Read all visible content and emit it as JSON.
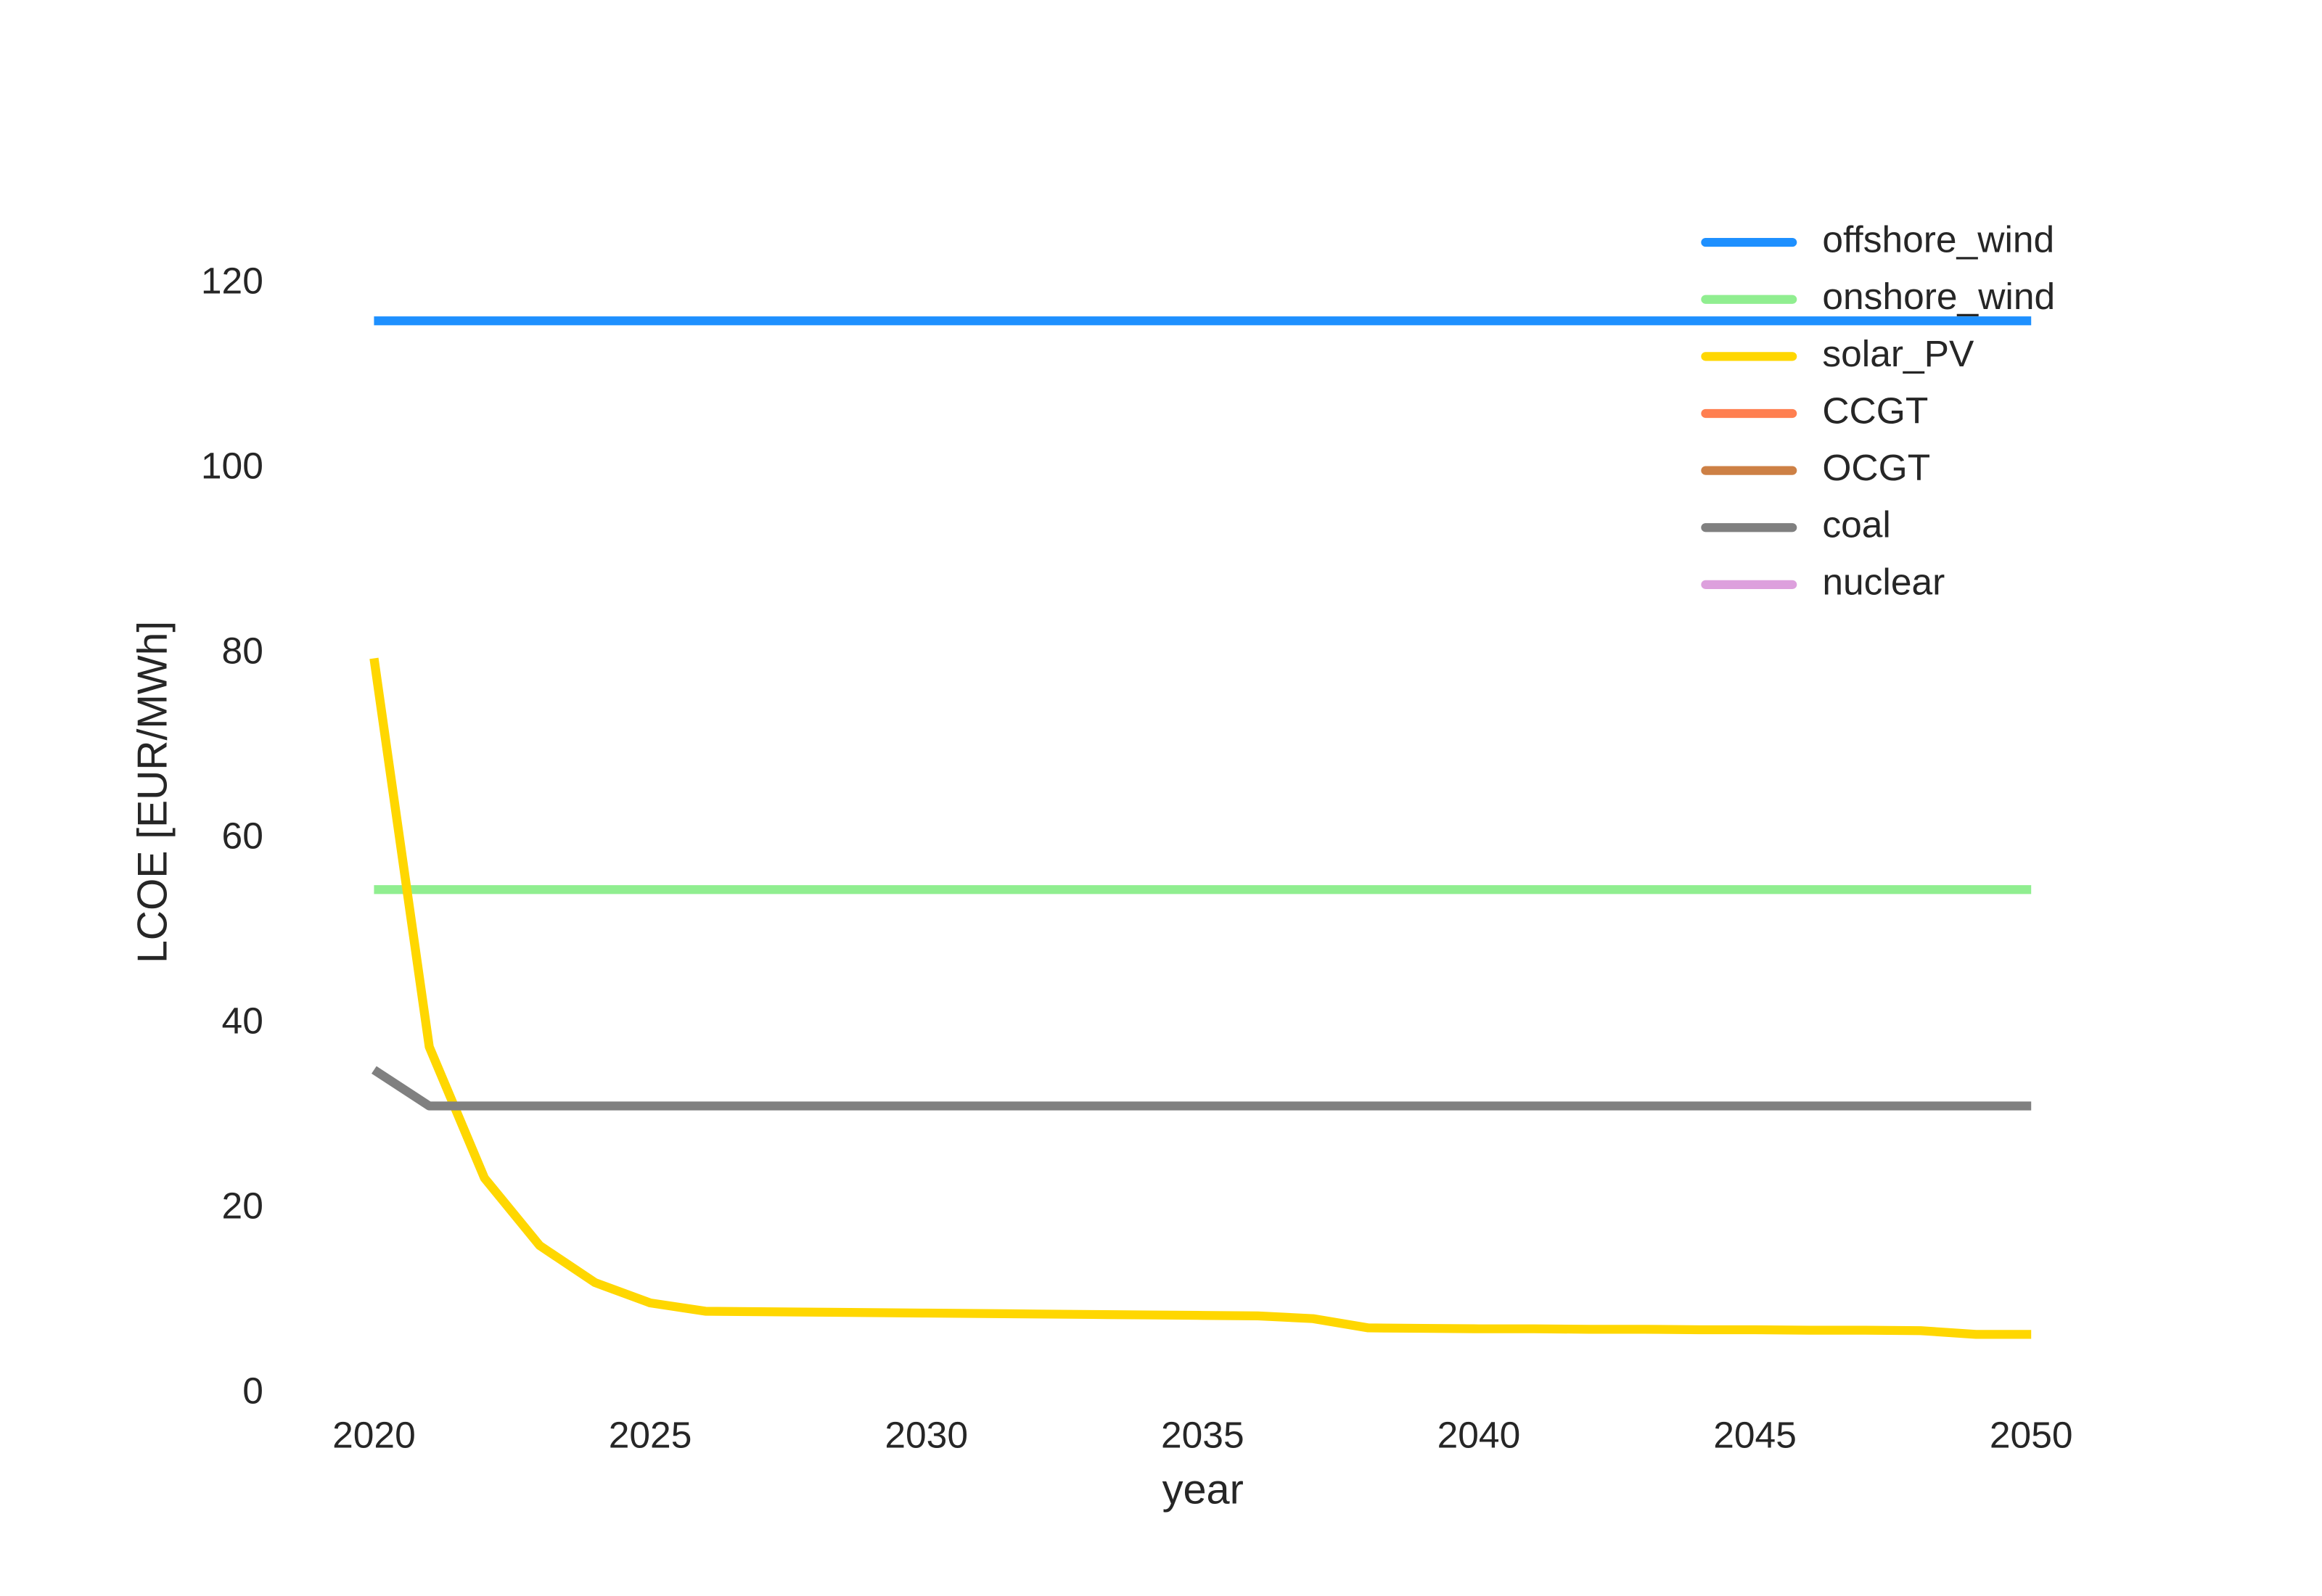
{
  "chart_data": {
    "type": "line",
    "x": [
      2020,
      2021,
      2022,
      2023,
      2024,
      2025,
      2026,
      2027,
      2028,
      2029,
      2030,
      2031,
      2032,
      2033,
      2034,
      2035,
      2036,
      2037,
      2038,
      2039,
      2040,
      2041,
      2042,
      2043,
      2044,
      2045,
      2046,
      2047,
      2048,
      2049,
      2050
    ],
    "series": [
      {
        "name": "offshore_wind",
        "color": "#1e90ff",
        "values": [
          116,
          116,
          116,
          116,
          116,
          116,
          116,
          116,
          116,
          116,
          116,
          116,
          116,
          116,
          116,
          116,
          116,
          116,
          116,
          116,
          116,
          116,
          116,
          116,
          116,
          116,
          116,
          116,
          116,
          116,
          116
        ]
      },
      {
        "name": "onshore_wind",
        "color": "#90ee90",
        "values": [
          54.5,
          54.5,
          54.5,
          54.5,
          54.5,
          54.5,
          54.5,
          54.5,
          54.5,
          54.5,
          54.5,
          54.5,
          54.5,
          54.5,
          54.5,
          54.5,
          54.5,
          54.5,
          54.5,
          54.5,
          54.5,
          54.5,
          54.5,
          54.5,
          54.5,
          54.5,
          54.5,
          54.5,
          54.5,
          54.5,
          54.5
        ]
      },
      {
        "name": "solar_PV",
        "color": "#ffd700",
        "values": [
          79.5,
          37.5,
          23.3,
          16,
          12,
          9.8,
          8.9,
          8.85,
          8.8,
          8.75,
          8.7,
          8.65,
          8.6,
          8.55,
          8.5,
          8.45,
          8.4,
          8.1,
          7.1,
          7.05,
          7,
          7,
          6.95,
          6.95,
          6.9,
          6.9,
          6.85,
          6.85,
          6.8,
          6.4,
          6.4
        ]
      },
      {
        "name": "CCGT",
        "color": "#ff7f50",
        "values": [
          null,
          null,
          null,
          null,
          null,
          null,
          null,
          null,
          null,
          null,
          null,
          null,
          null,
          null,
          null,
          null,
          null,
          null,
          null,
          null,
          null,
          null,
          null,
          null,
          null,
          null,
          null,
          null,
          null,
          null,
          null
        ]
      },
      {
        "name": "OCGT",
        "color": "#cd8045",
        "values": [
          null,
          null,
          null,
          null,
          null,
          null,
          null,
          null,
          null,
          null,
          null,
          null,
          null,
          null,
          null,
          null,
          null,
          null,
          null,
          null,
          null,
          null,
          null,
          null,
          null,
          null,
          null,
          null,
          null,
          null,
          null
        ]
      },
      {
        "name": "coal",
        "color": "#808080",
        "values": [
          35,
          31.1,
          31.1,
          31.1,
          31.1,
          31.1,
          31.1,
          31.1,
          31.1,
          31.1,
          31.1,
          31.1,
          31.1,
          31.1,
          31.1,
          31.1,
          31.1,
          31.1,
          31.1,
          31.1,
          31.1,
          31.1,
          31.1,
          31.1,
          31.1,
          31.1,
          31.1,
          31.1,
          31.1,
          31.1,
          31.1
        ]
      },
      {
        "name": "nuclear",
        "color": "#dda0dd",
        "values": [
          null,
          null,
          null,
          null,
          null,
          null,
          null,
          null,
          null,
          null,
          null,
          null,
          null,
          null,
          null,
          null,
          null,
          null,
          null,
          null,
          null,
          null,
          null,
          null,
          null,
          null,
          null,
          null,
          null,
          null,
          null
        ]
      }
    ],
    "xlabel": "year",
    "ylabel": "LCOE [EUR/MWh]",
    "xlim": [
      2018.5,
      2051.5
    ],
    "xticks": [
      2020,
      2025,
      2030,
      2035,
      2040,
      2045,
      2050
    ],
    "ylim": [
      0,
      130
    ],
    "yticks": [
      0,
      20,
      40,
      60,
      80,
      100,
      120
    ],
    "grid": false,
    "legend": "upper right"
  }
}
